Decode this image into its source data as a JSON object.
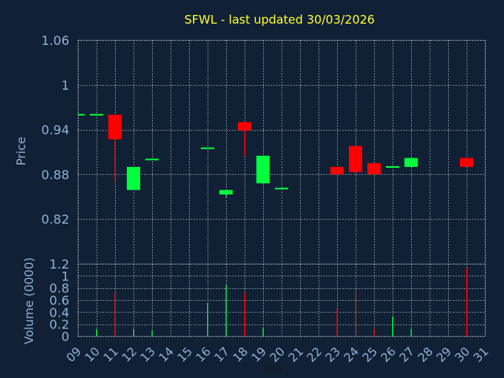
{
  "title": "SFWL - last updated 30/03/2026",
  "colors": {
    "background": "#102035",
    "panel_border": "#3f4d63",
    "grid": "#ffffff",
    "axis_text": "#8fb3d6",
    "title": "#ffff33",
    "up": "#00ff3c",
    "down": "#ff0000",
    "xlabel_text": "#1a1a1a"
  },
  "chart_data": [
    {
      "type": "candlestick",
      "ylabel": "Price",
      "ylim": [
        0.76,
        1.06
      ],
      "yticks": [
        0.82,
        0.88,
        0.94,
        1,
        1.06
      ],
      "ytick_labels": [
        "0.82",
        "0.88",
        "0.94",
        "1",
        "1.06"
      ],
      "x_days": [
        9,
        10,
        11,
        12,
        13,
        14,
        15,
        16,
        17,
        18,
        19,
        20,
        21,
        22,
        23,
        24,
        25,
        26,
        27,
        28,
        29,
        30,
        31
      ],
      "grid": true,
      "candles": [
        {
          "day": 9,
          "open": 0.96,
          "close": 0.961,
          "high": 0.961,
          "low": 0.96
        },
        {
          "day": 10,
          "open": 0.96,
          "close": 0.961,
          "high": 0.961,
          "low": 0.96
        },
        {
          "day": 11,
          "open": 0.96,
          "close": 0.927,
          "high": 0.96,
          "low": 0.87
        },
        {
          "day": 12,
          "open": 0.859,
          "close": 0.89,
          "high": 0.89,
          "low": 0.859
        },
        {
          "day": 13,
          "open": 0.9,
          "close": 0.901,
          "high": 0.901,
          "low": 0.9
        },
        {
          "day": 16,
          "open": 0.915,
          "close": 0.916,
          "high": 0.916,
          "low": 0.915
        },
        {
          "day": 17,
          "open": 0.853,
          "close": 0.859,
          "high": 0.859,
          "low": 0.849
        },
        {
          "day": 18,
          "open": 0.95,
          "close": 0.939,
          "high": 0.95,
          "low": 0.905
        },
        {
          "day": 19,
          "open": 0.868,
          "close": 0.905,
          "high": 0.905,
          "low": 0.868
        },
        {
          "day": 20,
          "open": 0.861,
          "close": 0.862,
          "high": 0.862,
          "low": 0.861
        },
        {
          "day": 23,
          "open": 0.89,
          "close": 0.88,
          "high": 0.89,
          "low": 0.88
        },
        {
          "day": 24,
          "open": 0.918,
          "close": 0.883,
          "high": 0.93,
          "low": 0.883
        },
        {
          "day": 25,
          "open": 0.895,
          "close": 0.88,
          "high": 0.895,
          "low": 0.88
        },
        {
          "day": 26,
          "open": 0.89,
          "close": 0.891,
          "high": 0.891,
          "low": 0.89
        },
        {
          "day": 27,
          "open": 0.89,
          "close": 0.902,
          "high": 0.902,
          "low": 0.89
        },
        {
          "day": 30,
          "open": 0.902,
          "close": 0.89,
          "high": 0.902,
          "low": 0.89
        }
      ]
    },
    {
      "type": "bar",
      "ylabel": "Volume (0000)",
      "xlabel": "Day",
      "ylim": [
        0,
        1.2
      ],
      "yticks": [
        0,
        0.2,
        0.4,
        0.6,
        0.8,
        1,
        1.2
      ],
      "ytick_labels": [
        "0",
        "0.2",
        "0.4",
        "0.6",
        "0.8",
        "1",
        "1.2"
      ],
      "xtick_labels": [
        "09",
        "10",
        "11",
        "12",
        "13",
        "14",
        "15",
        "16",
        "17",
        "18",
        "19",
        "20",
        "21",
        "22",
        "23",
        "24",
        "25",
        "26",
        "27",
        "28",
        "29",
        "30",
        "31"
      ],
      "grid": true,
      "bars": [
        {
          "day": 10,
          "value": 0.12,
          "direction": "up"
        },
        {
          "day": 11,
          "value": 0.72,
          "direction": "down"
        },
        {
          "day": 12,
          "value": 0.12,
          "direction": "up"
        },
        {
          "day": 13,
          "value": 0.1,
          "direction": "up"
        },
        {
          "day": 16,
          "value": 0.55,
          "direction": "up"
        },
        {
          "day": 17,
          "value": 0.85,
          "direction": "up"
        },
        {
          "day": 18,
          "value": 0.72,
          "direction": "down"
        },
        {
          "day": 19,
          "value": 0.15,
          "direction": "up"
        },
        {
          "day": 23,
          "value": 0.46,
          "direction": "down"
        },
        {
          "day": 24,
          "value": 0.75,
          "direction": "down"
        },
        {
          "day": 25,
          "value": 0.12,
          "direction": "down"
        },
        {
          "day": 26,
          "value": 0.33,
          "direction": "up"
        },
        {
          "day": 27,
          "value": 0.12,
          "direction": "up"
        },
        {
          "day": 30,
          "value": 1.13,
          "direction": "down"
        }
      ]
    }
  ]
}
